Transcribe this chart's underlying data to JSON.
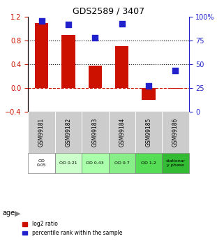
{
  "title": "GDS2589 / 3407",
  "samples": [
    "GSM99181",
    "GSM99182",
    "GSM99183",
    "GSM99184",
    "GSM99185",
    "GSM99186"
  ],
  "log2_ratio": [
    1.1,
    0.9,
    0.37,
    0.7,
    -0.2,
    -0.02
  ],
  "percentile_rank": [
    96,
    92,
    78,
    93,
    27,
    43
  ],
  "bar_color": "#cc1100",
  "dot_color": "#2222cc",
  "ylim_left": [
    -0.4,
    1.2
  ],
  "ylim_right": [
    0,
    100
  ],
  "yticks_left": [
    -0.4,
    0.0,
    0.4,
    0.8,
    1.2
  ],
  "yticks_right": [
    0,
    25,
    50,
    75,
    100
  ],
  "hlines": [
    0.4,
    0.8
  ],
  "age_labels": [
    "OD\n0.05",
    "OD 0.21",
    "OD 0.43",
    "OD 0.7",
    "OD 1.2",
    "stationar\ny phase"
  ],
  "age_colors": [
    "#ffffff",
    "#ccffcc",
    "#aaffaa",
    "#88ee88",
    "#55dd55",
    "#33bb33"
  ],
  "sample_bg_color": "#cccccc",
  "legend_red": "log2 ratio",
  "legend_blue": "percentile rank within the sample",
  "bar_width": 0.5
}
